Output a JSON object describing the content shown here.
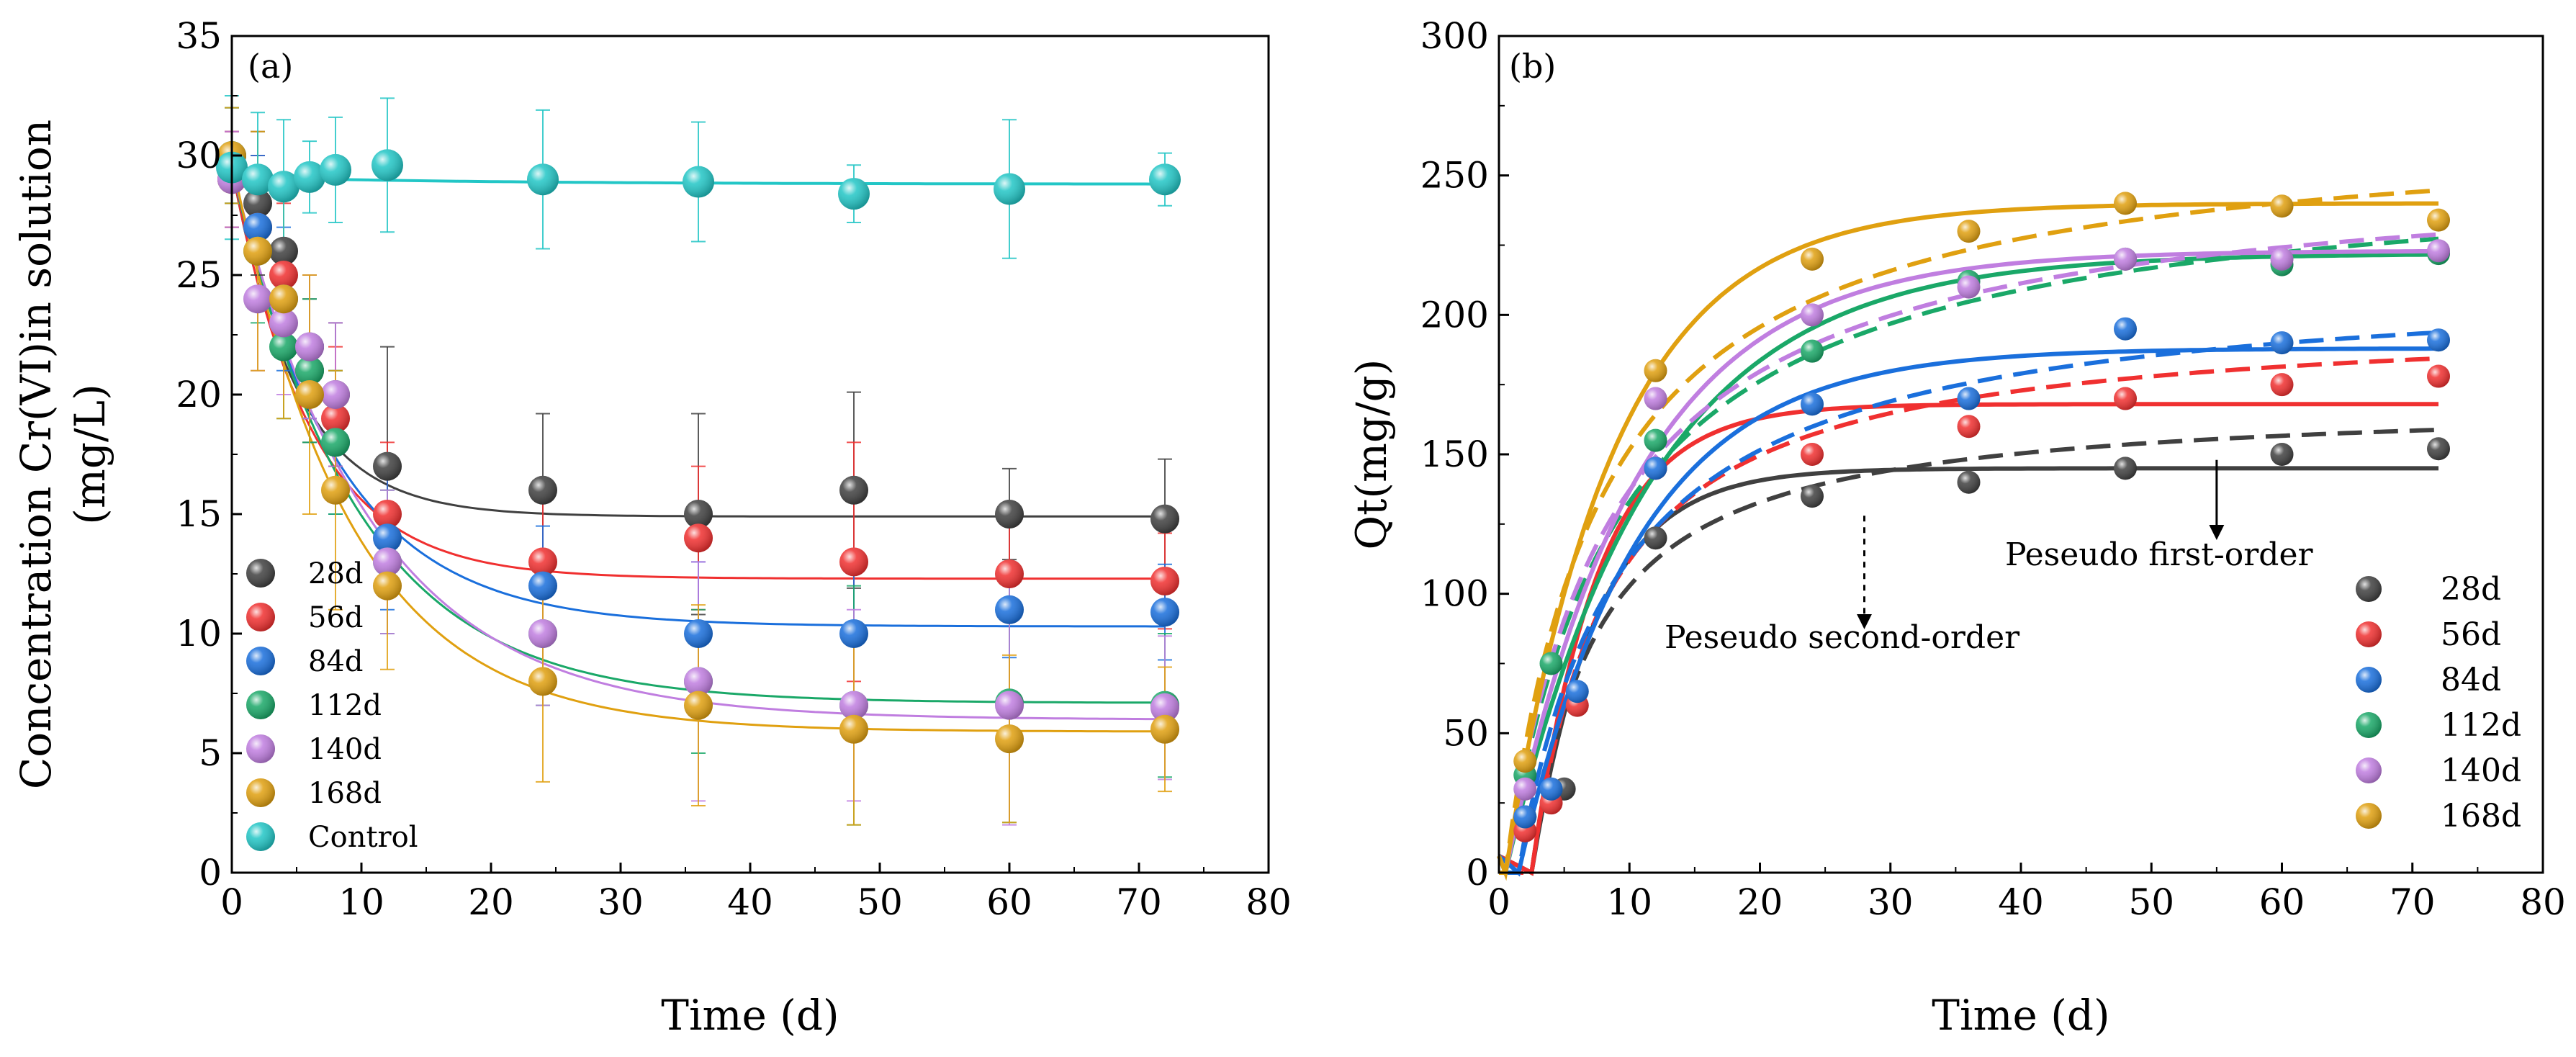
{
  "chart_data": [
    {
      "type": "scatter",
      "panel_label": "(a)",
      "xlabel": "Time (d)",
      "ylabel_lines": [
        "Concentration Cr(VI)in solution",
        "(mg/L)"
      ],
      "xlim": [
        0,
        80
      ],
      "ylim": [
        0,
        35
      ],
      "xticks": [
        0,
        10,
        20,
        30,
        40,
        50,
        60,
        70,
        80
      ],
      "yticks": [
        0,
        5,
        10,
        15,
        20,
        25,
        30,
        35
      ],
      "legend_position": "lower-left",
      "series": [
        {
          "name": "28d",
          "color": "#404040",
          "x": [
            0,
            2,
            4,
            6,
            8,
            12,
            24,
            36,
            48,
            60,
            72
          ],
          "y": [
            29,
            28,
            26,
            21,
            20,
            17,
            16,
            15,
            16,
            15,
            14.8
          ],
          "err": [
            2,
            3,
            3,
            3,
            3,
            5,
            3.2,
            4.2,
            4.1,
            1.9,
            2.5
          ],
          "fit": {
            "c0": 29.5,
            "cinf": 14.9,
            "k": 0.2
          }
        },
        {
          "name": "56d",
          "color": "#f03030",
          "x": [
            0,
            2,
            4,
            6,
            8,
            12,
            24,
            36,
            48,
            60,
            72
          ],
          "y": [
            29,
            27,
            25,
            22,
            19,
            15,
            13,
            14,
            13,
            12.5,
            12.2
          ],
          "err": [
            2,
            3,
            3,
            3,
            3,
            3,
            2.5,
            3,
            5,
            2,
            2
          ],
          "fit": {
            "c0": 29.5,
            "cinf": 12.3,
            "k": 0.165
          }
        },
        {
          "name": "84d",
          "color": "#1a6fdc",
          "x": [
            0,
            2,
            4,
            6,
            8,
            12,
            24,
            36,
            48,
            60,
            72
          ],
          "y": [
            30,
            27,
            24,
            22,
            18,
            14,
            12,
            10,
            10,
            11,
            10.9
          ],
          "err": [
            2,
            3,
            3,
            3,
            3,
            3,
            2.5,
            3,
            3,
            2,
            2
          ],
          "fit": {
            "c0": 29.5,
            "cinf": 10.3,
            "k": 0.125
          }
        },
        {
          "name": "112d",
          "color": "#1aa868",
          "x": [
            0,
            2,
            4,
            6,
            8,
            12,
            24,
            36,
            48,
            60,
            72
          ],
          "y": [
            30,
            26,
            22,
            21,
            18,
            13,
            10,
            8,
            7,
            7.1,
            7
          ],
          "err": [
            2,
            3,
            3,
            3,
            3,
            3,
            3,
            3,
            5,
            5,
            3
          ],
          "fit": {
            "c0": 29.5,
            "cinf": 7.1,
            "k": 0.105
          }
        },
        {
          "name": "140d",
          "color": "#c07ee0",
          "x": [
            0,
            2,
            4,
            6,
            8,
            12,
            24,
            36,
            48,
            60,
            72
          ],
          "y": [
            29,
            24,
            23,
            22,
            20,
            13,
            10,
            8,
            7,
            7,
            6.9
          ],
          "err": [
            2,
            3,
            3,
            3,
            3,
            3,
            3,
            5,
            4,
            5,
            3
          ],
          "fit": {
            "c0": 29.5,
            "cinf": 6.4,
            "k": 0.095
          }
        },
        {
          "name": "168d",
          "color": "#e0a010",
          "x": [
            0,
            2,
            4,
            6,
            8,
            12,
            24,
            36,
            48,
            60,
            72
          ],
          "y": [
            30,
            26,
            24,
            20,
            16,
            12,
            8,
            7,
            6,
            5.6,
            6
          ],
          "err": [
            2,
            5,
            5,
            5,
            5,
            3.5,
            4.2,
            4.2,
            4,
            3.5,
            2.6
          ],
          "fit": {
            "c0": 29.8,
            "cinf": 5.9,
            "k": 0.11
          }
        },
        {
          "name": "Control",
          "color": "#22c6c6",
          "x": [
            0,
            2,
            4,
            6,
            8,
            12,
            24,
            36,
            48,
            60,
            72
          ],
          "y": [
            29.5,
            29,
            28.7,
            29.1,
            29.4,
            29.6,
            29,
            28.9,
            28.4,
            28.6,
            29
          ],
          "err": [
            3,
            2.8,
            2.8,
            1.5,
            2.2,
            2.8,
            2.9,
            2.5,
            1.2,
            2.9,
            1.1
          ],
          "fit": {
            "c0": 29.1,
            "cinf": 28.8,
            "k": 0.05
          }
        }
      ]
    },
    {
      "type": "scatter",
      "panel_label": "(b)",
      "xlabel": "Time (d)",
      "ylabel": "Qt(mg/g)",
      "xlim": [
        0,
        80
      ],
      "ylim": [
        0,
        300
      ],
      "xticks": [
        0,
        10,
        20,
        30,
        40,
        50,
        60,
        70,
        80
      ],
      "yticks": [
        0,
        50,
        100,
        150,
        200,
        250,
        300
      ],
      "legend_position": "lower-right",
      "annotations": [
        {
          "text": "Peseudo first-order",
          "arrow_x": 55,
          "arrow_from_y": 148,
          "arrow_to_y": 122
        },
        {
          "text": "Peseudo second-order",
          "arrow_x": 28,
          "arrow_from_y": 128,
          "arrow_to_y": 90
        }
      ],
      "series": [
        {
          "name": "28d",
          "color": "#404040",
          "x": [
            2,
            5,
            12,
            24,
            36,
            48,
            60,
            72
          ],
          "y": [
            20,
            30,
            120,
            135,
            140,
            145,
            150,
            152
          ],
          "pfo": {
            "qe": 145,
            "k": 0.2,
            "t0": 2.5
          },
          "pso": {
            "qe": 170,
            "k": 0.0012,
            "t0": 2.5
          }
        },
        {
          "name": "56d",
          "color": "#f03030",
          "x": [
            2,
            4,
            6,
            12,
            24,
            36,
            48,
            60,
            72
          ],
          "y": [
            15,
            25,
            60,
            145,
            150,
            160,
            170,
            175,
            178
          ],
          "pfo": {
            "qe": 168,
            "k": 0.2,
            "t0": 2.5
          },
          "pso": {
            "qe": 200,
            "k": 0.00085,
            "t0": 2.5
          }
        },
        {
          "name": "84d",
          "color": "#1a6fdc",
          "x": [
            2,
            4,
            6,
            12,
            24,
            36,
            48,
            60,
            72
          ],
          "y": [
            20,
            30,
            65,
            145,
            168,
            170,
            195,
            190,
            191
          ],
          "pfo": {
            "qe": 188,
            "k": 0.11,
            "t0": 1.5
          },
          "pso": {
            "qe": 215,
            "k": 0.0006,
            "t0": 1.5
          }
        },
        {
          "name": "112d",
          "color": "#1aa868",
          "x": [
            2,
            4,
            12,
            24,
            36,
            48,
            60,
            72
          ],
          "y": [
            35,
            75,
            155,
            187,
            212,
            220,
            218,
            222
          ],
          "pfo": {
            "qe": 222,
            "k": 0.09,
            "t0": 0.5
          },
          "pso": {
            "qe": 255,
            "k": 0.00045,
            "t0": 0.5
          }
        },
        {
          "name": "140d",
          "color": "#c07ee0",
          "x": [
            2,
            12,
            24,
            36,
            48,
            60,
            72
          ],
          "y": [
            30,
            170,
            200,
            210,
            220,
            220,
            223
          ],
          "pfo": {
            "qe": 223,
            "k": 0.1,
            "t0": 0.5
          },
          "pso": {
            "qe": 255,
            "k": 0.00048,
            "t0": 0.5
          }
        },
        {
          "name": "168d",
          "color": "#e0a010",
          "x": [
            2,
            12,
            24,
            36,
            48,
            60,
            72
          ],
          "y": [
            40,
            180,
            220,
            230,
            240,
            239,
            234
          ],
          "pfo": {
            "qe": 240,
            "k": 0.12,
            "t0": 0.5
          },
          "pso": {
            "qe": 270,
            "k": 0.0005,
            "t0": 0.5
          }
        }
      ]
    }
  ]
}
